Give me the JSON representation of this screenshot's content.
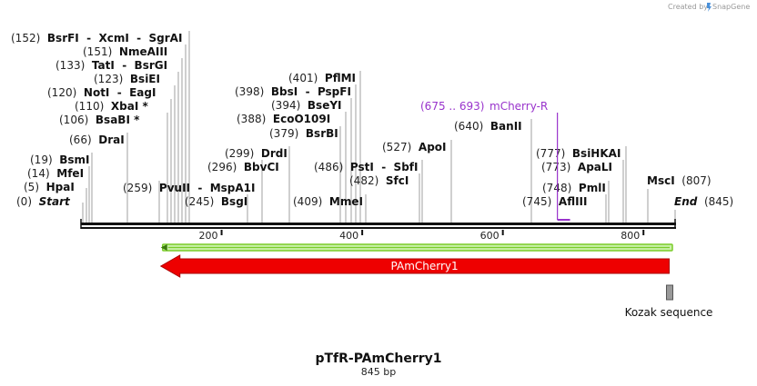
{
  "credit": {
    "prefix": "Created by",
    "brand": "SnapGene"
  },
  "map": {
    "title": "pTfR-PAmCherry1",
    "length_label": "845 bp",
    "length": 845
  },
  "ruler": {
    "ticks": [
      "200",
      "400",
      "600",
      "800"
    ]
  },
  "sites": [
    {
      "pos": "(0)",
      "name": "Start",
      "italic": true,
      "bp": 0
    },
    {
      "pos": "(5)",
      "name": "HpaI",
      "bp": 5
    },
    {
      "pos": "(14)",
      "name": "MfeI",
      "bp": 14
    },
    {
      "pos": "(19)",
      "name": "BsmI",
      "bp": 19
    },
    {
      "pos": "(66)",
      "name": "DraI",
      "bp": 66
    },
    {
      "pos": "(106)",
      "name": "BsaBI *",
      "bp": 106
    },
    {
      "pos": "(110)",
      "name": "XbaI *",
      "bp": 110
    },
    {
      "pos": "(120)",
      "name": "NotI",
      "sep": "-",
      "name2": "EagI",
      "bp": 120
    },
    {
      "pos": "(123)",
      "name": "BsiEI",
      "bp": 123
    },
    {
      "pos": "(133)",
      "name": "TatI",
      "sep": "-",
      "name2": "BsrGI",
      "bp": 133
    },
    {
      "pos": "(151)",
      "name": "NmeAIII",
      "bp": 151
    },
    {
      "pos": "(152)",
      "name": "BsrFI",
      "sep": "-",
      "name2": "XcmI",
      "sep2": "-",
      "name3": "SgrAI",
      "bp": 152
    },
    {
      "pos": "(259)",
      "name": "PvuII",
      "sep": "-",
      "name2": "MspA1I",
      "bp": 259
    },
    {
      "pos": "(245)",
      "name": "BsgI",
      "bp": 245
    },
    {
      "pos": "(296)",
      "name": "BbvCI",
      "bp": 296
    },
    {
      "pos": "(299)",
      "name": "DrdI",
      "bp": 299
    },
    {
      "pos": "(379)",
      "name": "BsrBI",
      "bp": 379
    },
    {
      "pos": "(388)",
      "name": "EcoO109I",
      "bp": 388
    },
    {
      "pos": "(394)",
      "name": "BseYI",
      "bp": 394
    },
    {
      "pos": "(398)",
      "name": "BbsI",
      "sep": "-",
      "name2": "PspFI",
      "bp": 398
    },
    {
      "pos": "(401)",
      "name": "PflMI",
      "bp": 401
    },
    {
      "pos": "(409)",
      "name": "MmeI",
      "bp": 409
    },
    {
      "pos": "(482)",
      "name": "SfcI",
      "bp": 482
    },
    {
      "pos": "(486)",
      "name": "PstI",
      "sep": "-",
      "name2": "SbfI",
      "bp": 486
    },
    {
      "pos": "(527)",
      "name": "ApoI",
      "bp": 527
    },
    {
      "pos": "(640)",
      "name": "BanII",
      "bp": 640
    },
    {
      "pos": "(745)",
      "name": "AflIII",
      "bp": 745
    },
    {
      "pos": "(748)",
      "name": "PmlI",
      "bp": 748
    },
    {
      "pos": "(773)",
      "name": "ApaLI",
      "bp": 773
    },
    {
      "pos": "(777)",
      "name": "BsiHKAI",
      "bp": 777
    },
    {
      "pos": "(807)",
      "name": "MscI",
      "bp": 807
    },
    {
      "pos": "(845)",
      "name": "End",
      "italic": true,
      "bp": 845
    }
  ],
  "primer": {
    "pos": "(675 .. 693)",
    "name": "mCherry-R",
    "start_bp": 675,
    "end_bp": 693,
    "color": "#9933cc"
  },
  "orf": {
    "color": "#7acc29",
    "start_bp": 845,
    "end_bp": 120
  },
  "feature": {
    "name": "PAmCherry1",
    "color": "#ee0000",
    "start_bp": 843,
    "end_bp": 120
  },
  "kozak": {
    "name": "Kozak sequence",
    "color": "#999999",
    "start_bp": 834,
    "end_bp": 845
  }
}
